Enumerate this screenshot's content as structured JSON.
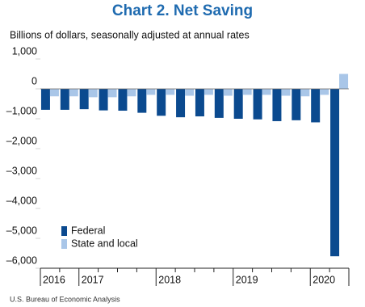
{
  "chart_data": {
    "type": "bar",
    "title": "Chart 2. Net Saving",
    "subtitle": "Billions of dollars, seasonally adjusted at annual rates",
    "source": "U.S. Bureau of Economic Analysis",
    "categories": [
      "2016",
      null,
      "2017",
      null,
      null,
      null,
      "2018",
      null,
      null,
      null,
      "2019",
      null,
      null,
      null,
      "2020",
      null
    ],
    "series": [
      {
        "name": "Federal",
        "color": "#0b4a8f",
        "values": [
          -700,
          -700,
          -680,
          -720,
          -730,
          -800,
          -900,
          -950,
          -920,
          -970,
          -1000,
          -1020,
          -1080,
          -1050,
          -1120,
          -5600
        ]
      },
      {
        "name": "State and local",
        "color": "#a9c6e8",
        "values": [
          -250,
          -250,
          -280,
          -280,
          -250,
          -200,
          -200,
          -230,
          -200,
          -230,
          -200,
          -200,
          -230,
          -250,
          -200,
          500
        ]
      }
    ],
    "ylim": [
      -6000,
      1000
    ],
    "yticks": [
      {
        "value": 1000,
        "label": "1,000"
      },
      0,
      {
        "value": -1000,
        "label": "–1,000"
      },
      {
        "value": -2000,
        "label": "–2,000"
      },
      {
        "value": -3000,
        "label": "–3,000"
      },
      {
        "value": -4000,
        "label": "–4,000"
      },
      {
        "value": -5000,
        "label": "–5,000"
      },
      {
        "value": -6000,
        "label": "–6,000"
      }
    ],
    "grid": false,
    "legend": "bottom-left"
  }
}
